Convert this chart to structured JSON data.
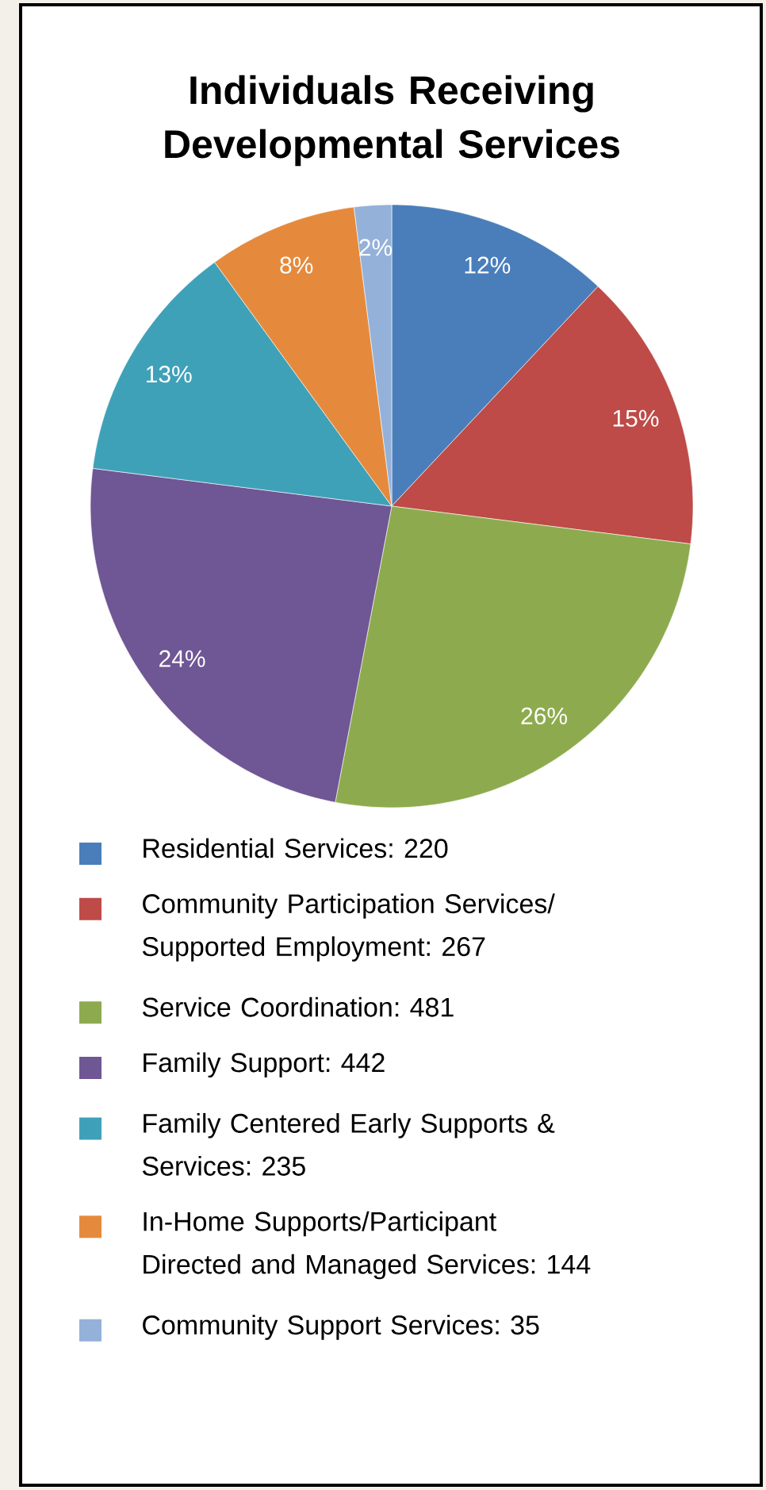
{
  "chart_data": {
    "type": "pie",
    "title": "Individuals Receiving Developmental Services",
    "categories": [
      "Residential Services: 220",
      "Community Participation Services/ Supported Employment: 267",
      "Service Coordination: 481",
      "Family Support: 442",
      "Family Centered Early Supports & Services: 235",
      "In-Home Supports/Participant Directed and Managed Services: 144",
      "Community Support Services: 35"
    ],
    "values": [
      12,
      15,
      26,
      24,
      13,
      8,
      2
    ],
    "colors": [
      "#4a7ebb",
      "#be4b48",
      "#8dab4e",
      "#6f5694",
      "#3fa1b8",
      "#e58a3c",
      "#94b1d9"
    ],
    "value_labels": [
      "12%",
      "15%",
      "26%",
      "24%",
      "13%",
      "8%",
      "2%"
    ],
    "legend": "bottom"
  }
}
